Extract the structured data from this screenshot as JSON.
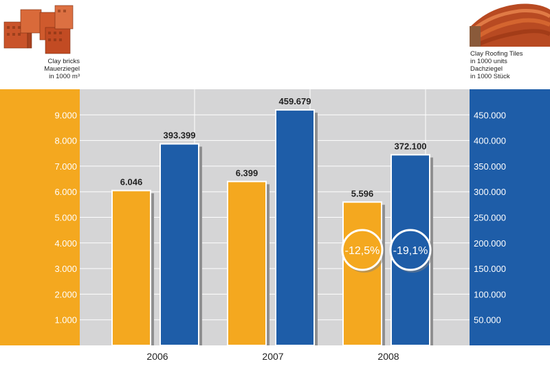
{
  "header": {
    "left_caption_lines": [
      "Clay bricks",
      "Mauerziegel",
      "in 1000 m³"
    ],
    "right_caption_lines": [
      "Clay Roofing Tiles",
      "in 1000 units",
      "Dachziegel",
      "in 1000 Stück"
    ]
  },
  "colors": {
    "orange": "#f4a81f",
    "blue": "#1e5da8",
    "plot_bg": "#d5d5d6"
  },
  "chart_data": {
    "type": "bar",
    "categories": [
      "2006",
      "2007",
      "2008"
    ],
    "series": [
      {
        "name": "Clay bricks / Mauerziegel in 1000 m³",
        "axis": "left",
        "values": [
          6046,
          6399,
          5596
        ],
        "labels": [
          "6.046",
          "6.399",
          "5.596"
        ]
      },
      {
        "name": "Clay Roofing Tiles in 1000 units / Dachziegel in 1000 Stück",
        "axis": "right",
        "values": [
          393399,
          459679,
          372100
        ],
        "labels": [
          "393.399",
          "459.679",
          "372.100"
        ]
      }
    ],
    "left_axis": {
      "ylim": [
        0,
        10000
      ],
      "ticks": [
        1000,
        2000,
        3000,
        4000,
        5000,
        6000,
        7000,
        8000,
        9000
      ],
      "tick_labels": [
        "1.000",
        "2.000",
        "3.000",
        "4.000",
        "5.000",
        "6.000",
        "7.000",
        "8.000",
        "9.000"
      ]
    },
    "right_axis": {
      "ylim": [
        0,
        500000
      ],
      "ticks": [
        50000,
        100000,
        150000,
        200000,
        250000,
        300000,
        350000,
        400000,
        450000
      ],
      "tick_labels": [
        "50.000",
        "100.000",
        "150.000",
        "200.000",
        "250.000",
        "300.000",
        "350.000",
        "400.000",
        "450.000"
      ]
    },
    "annotations": [
      {
        "series": 0,
        "category": "2008",
        "text": "-12,5%"
      },
      {
        "series": 1,
        "category": "2008",
        "text": "-19,1%"
      }
    ],
    "grid": true
  }
}
